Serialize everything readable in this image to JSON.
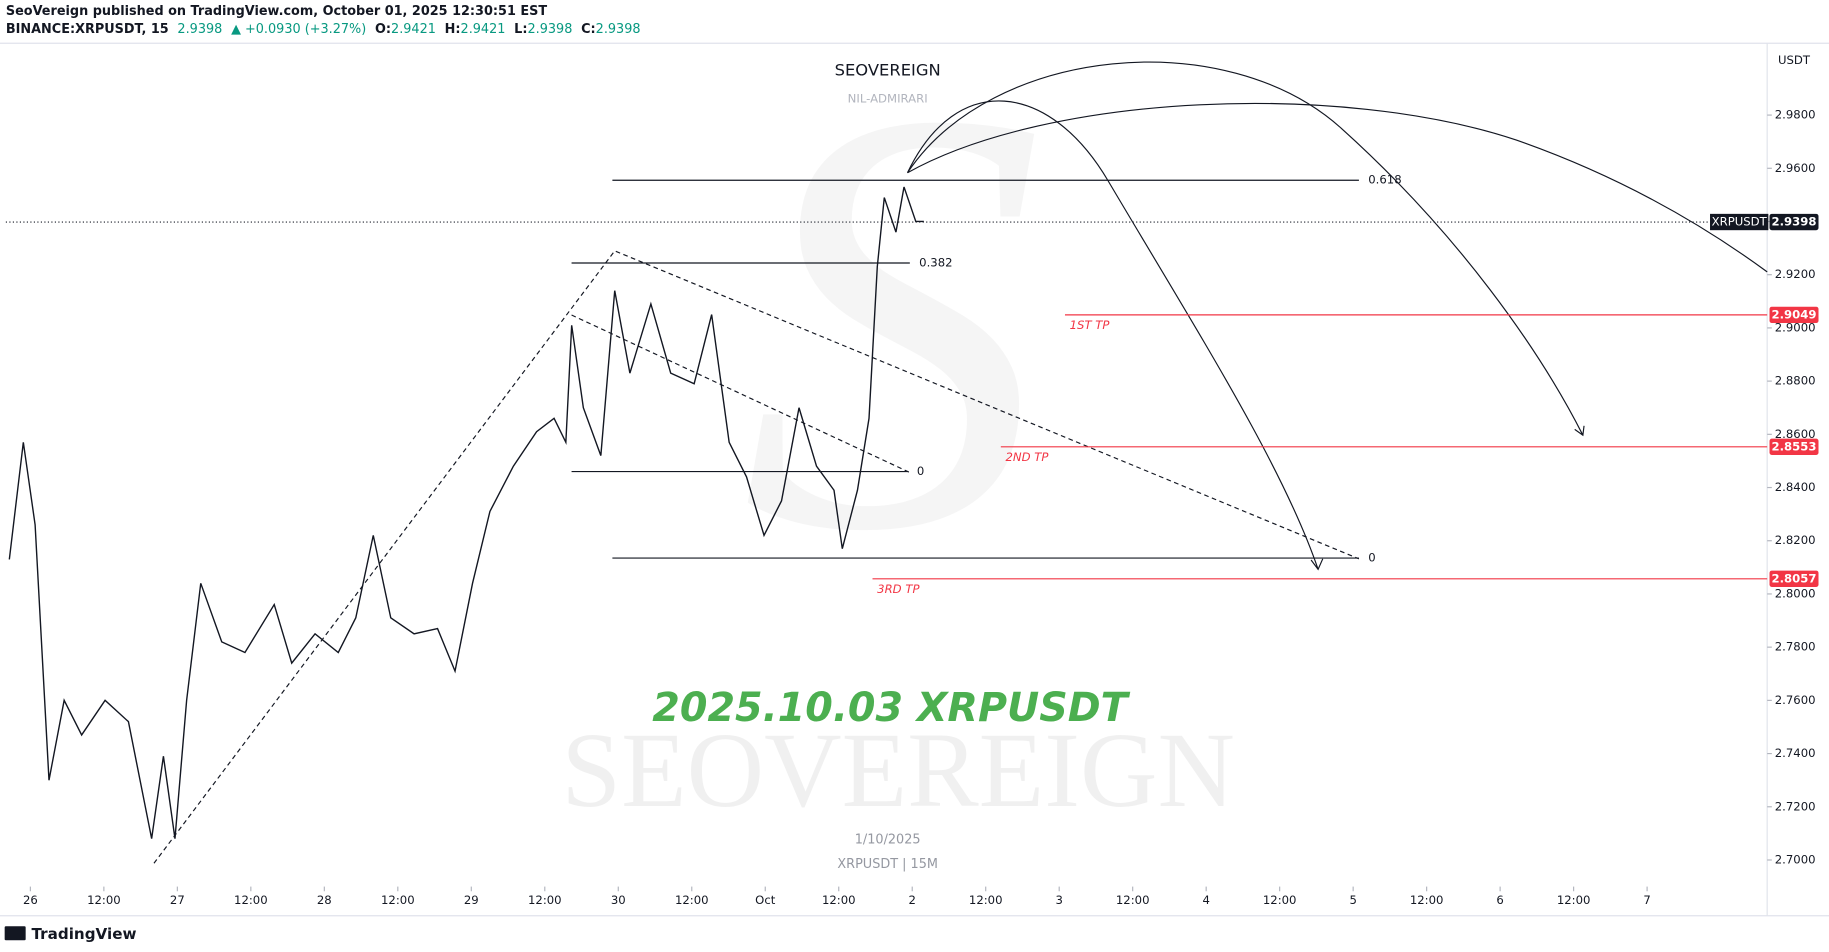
{
  "header": {
    "publisher": "SeoVereign published on TradingView.com, October 01, 2025 12:30:51 EST",
    "symbol": "BINANCE:XRPUSDT, 15",
    "last": "2.9398",
    "change": "▲ +0.0930 (+3.27%)",
    "ohlc": [
      [
        "O:",
        "2.9421"
      ],
      [
        "H:",
        "2.9421"
      ],
      [
        "L:",
        "2.9398"
      ],
      [
        "C:",
        "2.9398"
      ]
    ]
  },
  "chart_data": {
    "type": "line",
    "title": "SEOVEREIGN",
    "subtitle": "NIL-ADMIRARI",
    "annotation": "2025.10.03 XRPUSDT",
    "watermark": "SEOVEREIGN",
    "date_note": "1/10/2025",
    "caption": "XRPUSDT | 15M",
    "currency": "USDT",
    "series": [
      {
        "name": "XRPUSDT",
        "color": "#131722",
        "x": [
          -0.143,
          -0.048,
          0.032,
          0.127,
          0.23,
          0.349,
          0.508,
          0.667,
          0.825,
          0.905,
          0.984,
          1.063,
          1.159,
          1.302,
          1.46,
          1.659,
          1.778,
          1.937,
          2.095,
          2.214,
          2.333,
          2.452,
          2.611,
          2.77,
          2.889,
          3.008,
          3.127,
          3.286,
          3.444,
          3.563,
          3.643,
          3.683,
          3.762,
          3.881,
          3.976,
          4.079,
          4.222,
          4.357,
          4.516,
          4.635,
          4.754,
          4.873,
          4.992,
          5.111,
          5.23,
          5.349,
          5.468,
          5.524,
          5.627,
          5.706,
          5.762,
          5.81,
          5.889,
          5.944,
          6.024,
          6.079
        ],
        "values": [
          2.813,
          2.857,
          2.826,
          2.73,
          2.76,
          2.747,
          2.76,
          2.752,
          2.708,
          2.739,
          2.708,
          2.76,
          2.804,
          2.782,
          2.778,
          2.796,
          2.774,
          2.785,
          2.778,
          2.791,
          2.822,
          2.791,
          2.785,
          2.787,
          2.771,
          2.804,
          2.831,
          2.848,
          2.861,
          2.866,
          2.857,
          2.901,
          2.87,
          2.852,
          2.914,
          2.883,
          2.909,
          2.883,
          2.879,
          2.905,
          2.857,
          2.844,
          2.822,
          2.835,
          2.87,
          2.848,
          2.839,
          2.817,
          2.839,
          2.866,
          2.923,
          2.949,
          2.936,
          2.953,
          2.94,
          2.94
        ]
      }
    ],
    "last_price": 2.9398,
    "fib_levels": [
      {
        "label": "0.618",
        "value": 2.9555
      },
      {
        "label": "0.382",
        "value": 2.9244
      },
      {
        "label": "0",
        "value": 2.846
      },
      {
        "label": "0",
        "value": 2.8135
      }
    ],
    "targets": [
      {
        "label": "1ST TP",
        "value": 2.9049
      },
      {
        "label": "2ND TP",
        "value": 2.8553
      },
      {
        "label": "3RD TP",
        "value": 2.8057
      }
    ],
    "target_color": "#f23645",
    "xlim": [
      -0.167,
      11.817
    ],
    "ylim": [
      2.69,
      3.007
    ],
    "xticks": [
      {
        "value": 0,
        "label": "26"
      },
      {
        "value": 0.5,
        "label": "12:00"
      },
      {
        "value": 1,
        "label": "27"
      },
      {
        "value": 1.5,
        "label": "12:00"
      },
      {
        "value": 2,
        "label": "28"
      },
      {
        "value": 2.5,
        "label": "12:00"
      },
      {
        "value": 3,
        "label": "29"
      },
      {
        "value": 3.5,
        "label": "12:00"
      },
      {
        "value": 4,
        "label": "30"
      },
      {
        "value": 4.5,
        "label": "12:00"
      },
      {
        "value": 5,
        "label": "Oct"
      },
      {
        "value": 5.5,
        "label": "12:00"
      },
      {
        "value": 6,
        "label": "2"
      },
      {
        "value": 6.5,
        "label": "12:00"
      },
      {
        "value": 7,
        "label": "3"
      },
      {
        "value": 7.5,
        "label": "12:00"
      },
      {
        "value": 8,
        "label": "4"
      },
      {
        "value": 8.5,
        "label": "12:00"
      },
      {
        "value": 9,
        "label": "5"
      },
      {
        "value": 9.5,
        "label": "12:00"
      },
      {
        "value": 10,
        "label": "6"
      },
      {
        "value": 10.5,
        "label": "12:00"
      },
      {
        "value": 11,
        "label": "7"
      }
    ],
    "yticks": [
      {
        "value": 2.7,
        "label": "2.7000"
      },
      {
        "value": 2.72,
        "label": "2.7200"
      },
      {
        "value": 2.74,
        "label": "2.7400"
      },
      {
        "value": 2.76,
        "label": "2.7600"
      },
      {
        "value": 2.78,
        "label": "2.7800"
      },
      {
        "value": 2.8,
        "label": "2.8000"
      },
      {
        "value": 2.82,
        "label": "2.8200"
      },
      {
        "value": 2.84,
        "label": "2.8400"
      },
      {
        "value": 2.86,
        "label": "2.8600"
      },
      {
        "value": 2.88,
        "label": "2.8800"
      },
      {
        "value": 2.9,
        "label": "2.9000"
      },
      {
        "value": 2.92,
        "label": "2.9200"
      },
      {
        "value": 2.94,
        "label": "2.9400"
      },
      {
        "value": 2.96,
        "label": "2.9600"
      },
      {
        "value": 2.98,
        "label": "2.9800"
      }
    ],
    "grid": false
  },
  "footer": {
    "brand": "TradingView"
  }
}
